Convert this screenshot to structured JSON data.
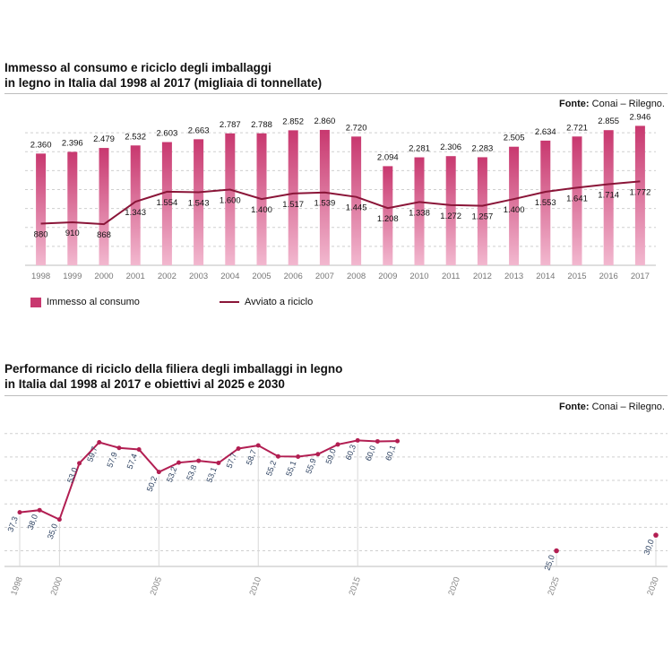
{
  "chart_data": [
    {
      "type": "bar",
      "title_line1": "Immesso al consumo e riciclo degli imballaggi",
      "title_line2": "in legno in Italia dal 1998 al 2017 (migliaia di tonnellate)",
      "source_label": "Fonte:",
      "source_text": "Conai – Rilegno.",
      "categories": [
        "1998",
        "1999",
        "2000",
        "2001",
        "2002",
        "2003",
        "2004",
        "2005",
        "2006",
        "2007",
        "2008",
        "2009",
        "2010",
        "2011",
        "2012",
        "2013",
        "2014",
        "2015",
        "2016",
        "2017"
      ],
      "series": [
        {
          "name": "Immesso al consumo",
          "type": "bar",
          "values": [
            2360,
            2396,
            2479,
            2532,
            2603,
            2663,
            2787,
            2788,
            2852,
            2860,
            2720,
            2094,
            2281,
            2306,
            2283,
            2505,
            2634,
            2721,
            2855,
            2946
          ],
          "labels": [
            "2.360",
            "2.396",
            "2.479",
            "2.532",
            "2.603",
            "2.663",
            "2.787",
            "2.788",
            "2.852",
            "2.860",
            "2.720",
            "2.094",
            "2.281",
            "2.306",
            "2.283",
            "2.505",
            "2.634",
            "2.721",
            "2.855",
            "2.946"
          ]
        },
        {
          "name": "Avviato a riciclo",
          "type": "line",
          "values": [
            880,
            910,
            868,
            1343,
            1554,
            1543,
            1600,
            1400,
            1517,
            1539,
            1445,
            1208,
            1338,
            1272,
            1257,
            1400,
            1553,
            1641,
            1714,
            1772
          ],
          "labels": [
            "880",
            "910",
            "868",
            "1.343",
            "1.554",
            "1.543",
            "1.600",
            "1.400",
            "1.517",
            "1.539",
            "1.445",
            "1.208",
            "1.338",
            "1.272",
            "1.257",
            "1.400",
            "1.553",
            "1.641",
            "1.714",
            "1.772"
          ]
        }
      ],
      "ylim": [
        0,
        3200
      ],
      "grid": true,
      "colors": {
        "bar_top": "#c8386f",
        "bar_bottom": "#f2b8cf",
        "line": "#8a1538",
        "grid": "#cfcfcf"
      },
      "legend_position": "bottom-left"
    },
    {
      "type": "line",
      "title_line1": "Performance di riciclo della filiera degli imballaggi in legno",
      "title_line2": "in Italia dal 1998 al 2017 e obiettivi al 2025 e 2030",
      "source_label": "Fonte:",
      "source_text": "Conai – Rilegno.",
      "x_ticks": [
        "1998",
        "2000",
        "2005",
        "2010",
        "2015",
        "2020",
        "2025",
        "2030"
      ],
      "xlim": [
        1998,
        2030
      ],
      "ylim": [
        20,
        65
      ],
      "series": [
        {
          "name": "Performance di riciclo",
          "x": [
            1998,
            1999,
            2000,
            2001,
            2002,
            2003,
            2004,
            2005,
            2006,
            2007,
            2008,
            2009,
            2010,
            2011,
            2012,
            2013,
            2014,
            2015,
            2016,
            2017
          ],
          "values": [
            37.3,
            38.0,
            35.0,
            53.0,
            59.7,
            57.9,
            57.4,
            50.2,
            53.2,
            53.8,
            53.1,
            57.7,
            58.7,
            55.2,
            55.1,
            55.9,
            59.0,
            60.3,
            60.0,
            60.1
          ],
          "labels": [
            "37,3",
            "38,0",
            "35,0",
            "53,0",
            "59,7",
            "57,9",
            "57,4",
            "50,2",
            "53,2",
            "53,8",
            "53,1",
            "57,7",
            "58,7",
            "55,2",
            "55,1",
            "55,9",
            "59,0",
            "60,3",
            "60,0",
            "60,1"
          ]
        },
        {
          "name": "Obiettivi",
          "x": [
            2025,
            2030
          ],
          "values": [
            25.0,
            30.0
          ],
          "labels": [
            "25,0",
            "30,0"
          ]
        }
      ],
      "grid": true,
      "colors": {
        "line": "#b21e52",
        "marker": "#b21e52",
        "grid": "#cfcfcf",
        "drop": "#d8d8d8",
        "label": "#2a3f5f"
      }
    }
  ]
}
